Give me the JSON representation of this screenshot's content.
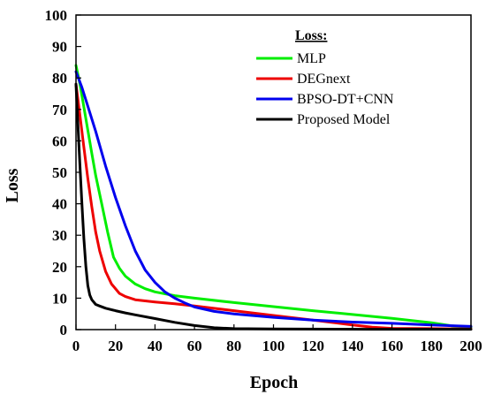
{
  "chart_data": {
    "type": "line",
    "title": "",
    "xlabel": "Epoch",
    "ylabel": "Loss",
    "xlim": [
      0,
      200
    ],
    "ylim": [
      0,
      100
    ],
    "xticks": [
      0,
      20,
      40,
      60,
      80,
      100,
      120,
      140,
      160,
      180,
      200
    ],
    "yticks": [
      0,
      10,
      20,
      30,
      40,
      50,
      60,
      70,
      80,
      90,
      100
    ],
    "grid": false,
    "legend": {
      "title": "Loss:",
      "placement": "top-right"
    },
    "series": [
      {
        "name": "MLP",
        "color": "#00ee00",
        "x": [
          0,
          2,
          5,
          8,
          10,
          13,
          16,
          19,
          22,
          25,
          30,
          35,
          40,
          50,
          60,
          80,
          100,
          120,
          140,
          160,
          180,
          190,
          200
        ],
        "y": [
          84,
          78,
          67,
          56,
          49,
          40,
          31,
          23,
          19.5,
          17,
          14.5,
          13,
          12,
          10.8,
          10,
          8.6,
          7.3,
          6,
          4.8,
          3.6,
          2.2,
          1.2,
          0.8
        ]
      },
      {
        "name": "DEGnext",
        "color": "#ee0000",
        "x": [
          0,
          2,
          4,
          6,
          8,
          10,
          12,
          15,
          18,
          22,
          25,
          30,
          40,
          50,
          60,
          80,
          100,
          120,
          140,
          150,
          160,
          180,
          200
        ],
        "y": [
          78,
          68,
          58,
          48,
          39,
          31,
          25,
          18.5,
          14.5,
          11.5,
          10.5,
          9.5,
          8.8,
          8.2,
          7.5,
          6,
          4.5,
          3,
          1.5,
          0.8,
          0.4,
          0.3,
          0.2
        ]
      },
      {
        "name": "BPSO-DT+CNN",
        "color": "#0000ee",
        "x": [
          0,
          3,
          6,
          10,
          15,
          20,
          25,
          30,
          35,
          40,
          45,
          50,
          55,
          60,
          70,
          80,
          100,
          120,
          140,
          160,
          180,
          200
        ],
        "y": [
          82,
          77,
          71,
          63,
          52,
          42,
          33,
          25,
          19,
          15,
          12,
          10,
          8.5,
          7.2,
          5.8,
          5,
          3.9,
          3,
          2.4,
          2,
          1.5,
          1
        ]
      },
      {
        "name": "Proposed Model",
        "color": "#000000",
        "x": [
          0,
          1,
          2,
          3,
          4,
          5,
          6,
          7,
          8,
          10,
          12,
          15,
          20,
          25,
          30,
          40,
          50,
          60,
          70,
          80,
          100,
          150,
          200
        ],
        "y": [
          78,
          65,
          52,
          40,
          29,
          20,
          14,
          11,
          9.5,
          8,
          7.5,
          6.8,
          6,
          5.3,
          4.7,
          3.5,
          2.3,
          1.3,
          0.6,
          0.3,
          0.2,
          0.1,
          0.1
        ]
      }
    ]
  }
}
